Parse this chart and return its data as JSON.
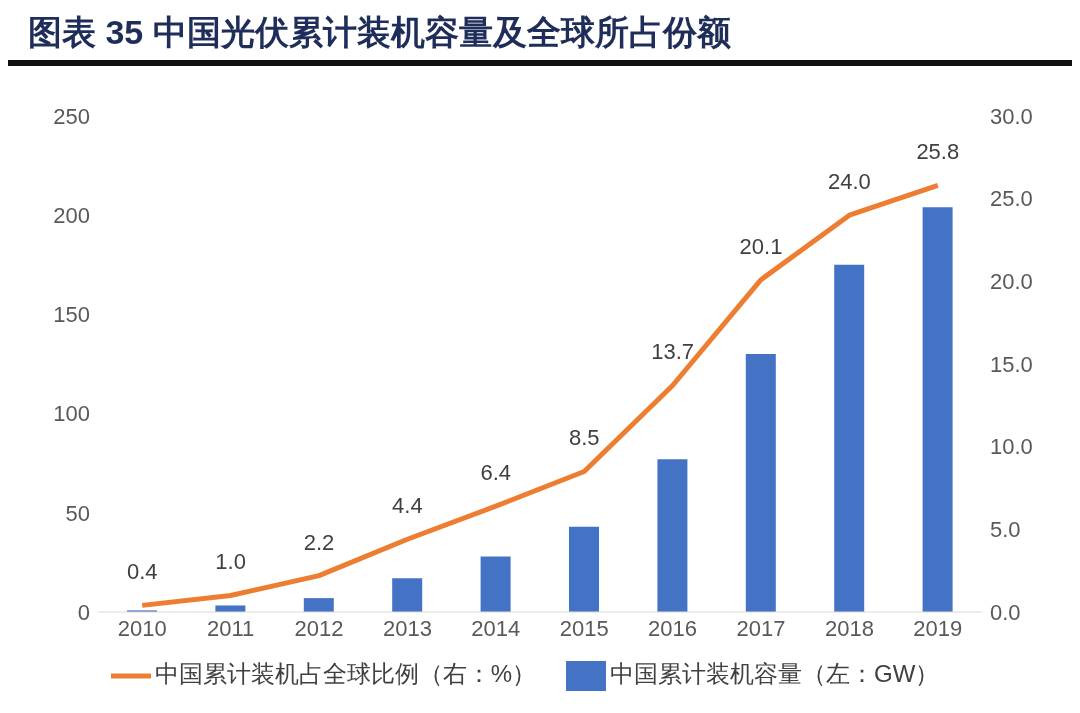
{
  "chart_data": {
    "type": "bar",
    "title": "图表 35  中国光伏累计装机容量及全球所占份额",
    "categories": [
      "2010",
      "2011",
      "2012",
      "2013",
      "2014",
      "2015",
      "2016",
      "2017",
      "2018",
      "2019"
    ],
    "series": [
      {
        "name": "中国累计装机容量（左：GW）",
        "color": "#4472c4",
        "values": [
          0.8,
          3.3,
          7,
          17,
          28,
          43,
          77,
          130,
          175,
          204
        ]
      },
      {
        "name": "中国累计装机占全球比例（右：%）",
        "type": "line",
        "axis": "y2",
        "color": "#ed7d31",
        "marker": "none",
        "values": [
          0.4,
          1.0,
          2.2,
          4.4,
          6.4,
          8.5,
          13.7,
          20.1,
          24.0,
          25.8
        ],
        "value_labels": [
          "0.4",
          "1.0",
          "2.2",
          "4.4",
          "6.4",
          "8.5",
          "13.7",
          "20.1",
          "24.0",
          "25.8"
        ]
      }
    ],
    "ylim": [
      0,
      250
    ],
    "yticks": [
      0,
      50,
      100,
      150,
      200,
      250
    ],
    "y2lim": [
      0,
      30
    ],
    "y2ticks": [
      {
        "value": 0,
        "label": "0.0"
      },
      {
        "value": 5,
        "label": "5.0"
      },
      {
        "value": 10,
        "label": "10.0"
      },
      {
        "value": 15,
        "label": "15.0"
      },
      {
        "value": 20,
        "label": "20.0"
      },
      {
        "value": 25,
        "label": "25.0"
      },
      {
        "value": 30,
        "label": "30.0"
      }
    ],
    "grid": false,
    "legend": "bottom"
  }
}
